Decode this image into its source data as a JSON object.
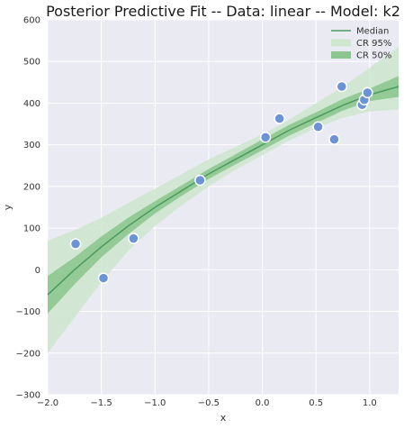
{
  "chart_data": {
    "type": "line",
    "title": "Posterior Predictive Fit -- Data: linear -- Model: k2",
    "xlabel": "x",
    "ylabel": "y",
    "xlim": [
      -2.0,
      1.27
    ],
    "ylim": [
      -300,
      600
    ],
    "xticks": [
      -2.0,
      -1.5,
      -1.0,
      -0.5,
      0.0,
      0.5,
      1.0
    ],
    "xtick_labels": [
      "−2.0",
      "−1.5",
      "−1.0",
      "−0.5",
      "0.0",
      "0.5",
      "1.0"
    ],
    "yticks": [
      -300,
      -200,
      -100,
      0,
      100,
      200,
      300,
      400,
      500,
      600
    ],
    "ytick_labels": [
      "−300",
      "−200",
      "−100",
      "0",
      "100",
      "200",
      "300",
      "400",
      "500",
      "600"
    ],
    "grid": true,
    "legend_position": "top-right",
    "x": [
      -2.0,
      -1.75,
      -1.5,
      -1.25,
      -1.0,
      -0.75,
      -0.5,
      -0.25,
      0.0,
      0.25,
      0.5,
      0.75,
      1.0,
      1.27
    ],
    "series": [
      {
        "name": "Median",
        "kind": "line",
        "color": "#4a9a5f",
        "values": [
          -60,
          0,
          55,
          105,
          150,
          190,
          230,
          265,
          300,
          335,
          365,
          395,
          420,
          440
        ]
      },
      {
        "name": "CR 95%",
        "kind": "band",
        "color": "#cfe7cf",
        "lower": [
          -200,
          -115,
          -30,
          45,
          105,
          155,
          200,
          240,
          275,
          310,
          340,
          365,
          380,
          385
        ],
        "upper": [
          70,
          95,
          125,
          160,
          195,
          230,
          265,
          295,
          325,
          360,
          400,
          440,
          485,
          535
        ]
      },
      {
        "name": "CR 50%",
        "kind": "band",
        "color": "#8cc68f",
        "lower": [
          -105,
          -35,
          30,
          85,
          135,
          178,
          218,
          253,
          287,
          322,
          352,
          382,
          405,
          415
        ],
        "upper": [
          -15,
          30,
          80,
          125,
          165,
          203,
          242,
          277,
          313,
          348,
          378,
          410,
          435,
          465
        ]
      },
      {
        "name": "data",
        "kind": "scatter",
        "color": "#6b93d6",
        "points": [
          [
            -1.74,
            62
          ],
          [
            -1.48,
            -20
          ],
          [
            -1.2,
            75
          ],
          [
            -0.58,
            215
          ],
          [
            0.03,
            318
          ],
          [
            0.16,
            363
          ],
          [
            0.52,
            343
          ],
          [
            0.67,
            313
          ],
          [
            0.74,
            440
          ],
          [
            0.93,
            396
          ],
          [
            0.95,
            408
          ],
          [
            0.98,
            425
          ]
        ]
      }
    ]
  }
}
